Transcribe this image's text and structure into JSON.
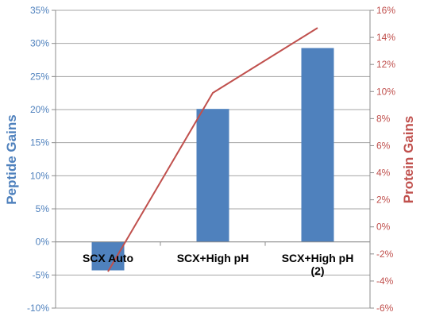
{
  "chart_data": {
    "type": "bar+line",
    "categories": [
      [
        "SCX Auto"
      ],
      [
        "SCX+High pH"
      ],
      [
        "SCX+High pH",
        "(2)"
      ]
    ],
    "series": [
      {
        "type": "bar",
        "axis": "left",
        "values": [
          -4.3,
          20.1,
          29.3
        ],
        "color": "#4F81BD"
      },
      {
        "type": "line",
        "axis": "right",
        "values": [
          -3.3,
          9.9,
          14.7
        ],
        "color": "#C0504D"
      }
    ],
    "ylabel": "Peptide Gains",
    "y2label": "Protein Gains",
    "ylim": [
      -10,
      35
    ],
    "y2lim": [
      -6,
      16
    ],
    "yticks": [
      "-10%",
      "-5%",
      "0%",
      "5%",
      "10%",
      "15%",
      "20%",
      "25%",
      "30%",
      "35%"
    ],
    "y2ticks": [
      "-6%",
      "-4%",
      "-2%",
      "0%",
      "2%",
      "4%",
      "6%",
      "8%",
      "10%",
      "12%",
      "14%",
      "16%"
    ],
    "grid": true
  }
}
